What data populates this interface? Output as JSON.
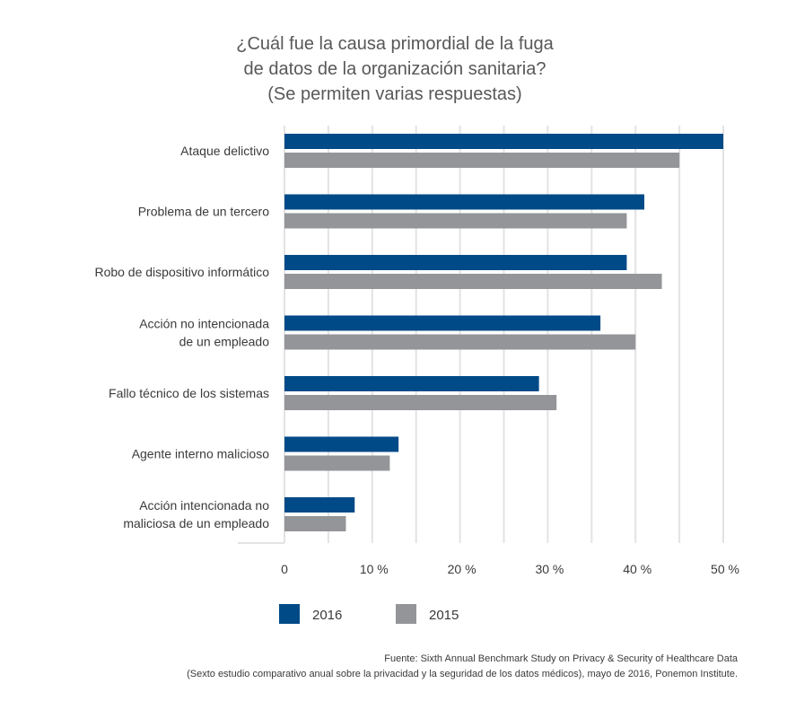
{
  "chart_data": {
    "type": "bar",
    "orientation": "horizontal",
    "title": [
      "¿Cuál fue la causa primordial de la fuga",
      "de datos de la organización sanitaria?",
      "(Se permiten varias respuestas)"
    ],
    "categories": [
      [
        "Ataque delictivo"
      ],
      [
        "Problema de un tercero"
      ],
      [
        "Robo de dispositivo informático"
      ],
      [
        "Acción no intencionada",
        "de un empleado"
      ],
      [
        "Fallo técnico de los sistemas"
      ],
      [
        "Agente interno malicioso"
      ],
      [
        "Acción intencionada no",
        "maliciosa de un empleado"
      ]
    ],
    "series": [
      {
        "name": "2016",
        "color": "#004a88",
        "values": [
          50,
          41,
          39,
          36,
          29,
          13,
          8
        ]
      },
      {
        "name": "2015",
        "color": "#939598",
        "values": [
          45,
          39,
          43,
          40,
          31,
          12,
          7
        ]
      }
    ],
    "xlim": [
      0,
      50
    ],
    "xticks": [
      0,
      10,
      20,
      30,
      40,
      50
    ],
    "xtick_labels": [
      "0",
      "10 %",
      "20 %",
      "30 %",
      "40 %",
      "50 %"
    ],
    "grid": true,
    "legend_position": "bottom-left",
    "source": [
      "Fuente: Sixth Annual Benchmark Study on Privacy & Security of Healthcare Data",
      "(Sexto estudio comparativo anual sobre la privacidad y la seguridad de los datos médicos), mayo de 2016, Ponemon Institute."
    ]
  }
}
